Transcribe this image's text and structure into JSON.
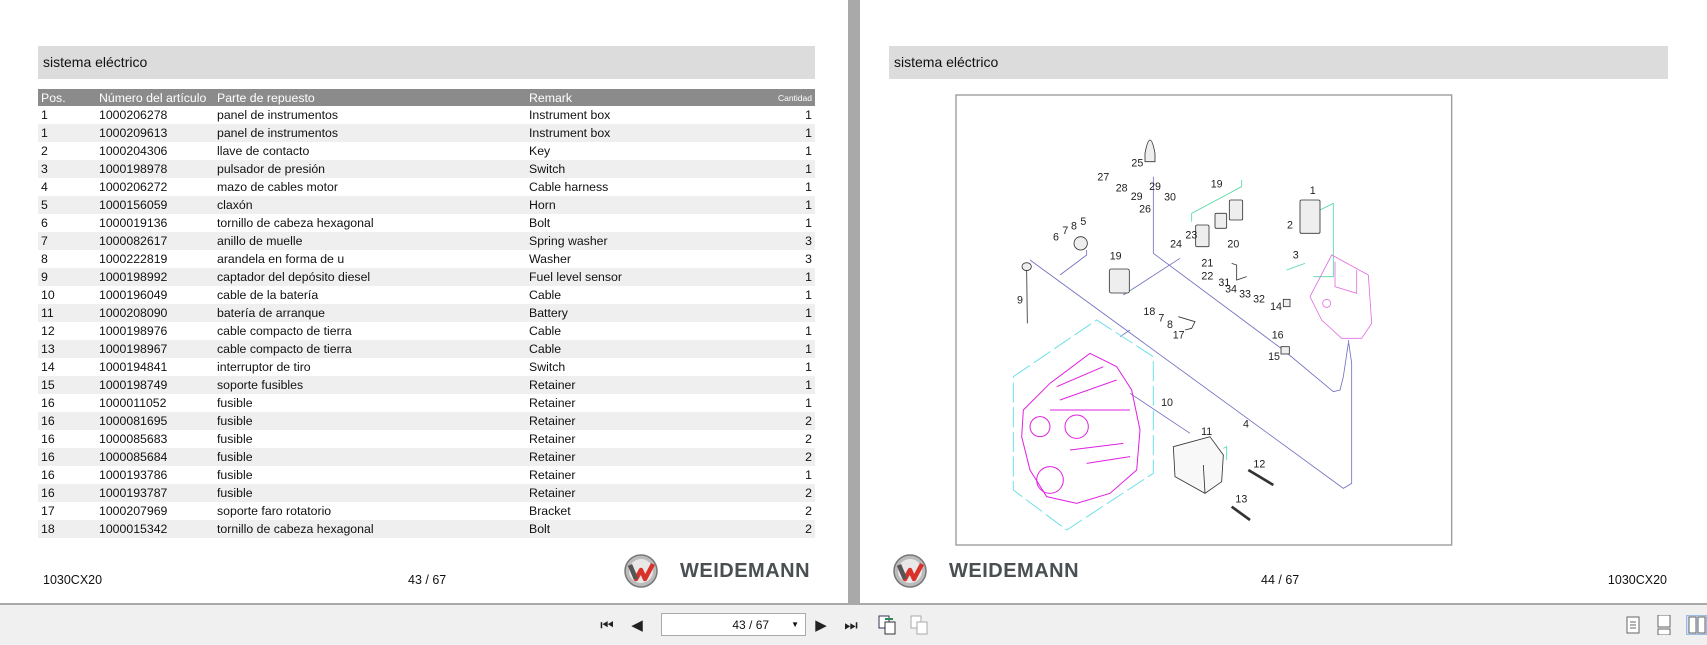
{
  "left_page": {
    "section_title": "sistema eléctrico",
    "columns": [
      "Pos.",
      "Número del artículo",
      "Parte de repuesto",
      "Remark",
      "Cantidad"
    ],
    "rows": [
      [
        "1",
        "1000206278",
        "panel de instrumentos",
        "Instrument box",
        "1"
      ],
      [
        "1",
        "1000209613",
        "panel de instrumentos",
        "Instrument box",
        "1"
      ],
      [
        "2",
        "1000204306",
        "llave de contacto",
        "Key",
        "1"
      ],
      [
        "3",
        "1000198978",
        "pulsador de presión",
        "Switch",
        "1"
      ],
      [
        "4",
        "1000206272",
        "mazo de cables motor",
        "Cable harness",
        "1"
      ],
      [
        "5",
        "1000156059",
        "claxón",
        "Horn",
        "1"
      ],
      [
        "6",
        "1000019136",
        "tornillo de cabeza hexagonal",
        "Bolt",
        "1"
      ],
      [
        "7",
        "1000082617",
        "anillo de muelle",
        "Spring washer",
        "3"
      ],
      [
        "8",
        "1000222819",
        "arandela en forma de u",
        "Washer",
        "3"
      ],
      [
        "9",
        "1000198992",
        "captador del depósito diesel",
        "Fuel level sensor",
        "1"
      ],
      [
        "10",
        "1000196049",
        "cable de la batería",
        "Cable",
        "1"
      ],
      [
        "11",
        "1000208090",
        "batería de arranque",
        "Battery",
        "1"
      ],
      [
        "12",
        "1000198976",
        "cable compacto de tierra",
        "Cable",
        "1"
      ],
      [
        "13",
        "1000198967",
        "cable compacto de tierra",
        "Cable",
        "1"
      ],
      [
        "14",
        "1000194841",
        "interruptor de tiro",
        "Switch",
        "1"
      ],
      [
        "15",
        "1000198749",
        "soporte fusibles",
        "Retainer",
        "1"
      ],
      [
        "16",
        "1000011052",
        "fusible",
        "Retainer",
        "1"
      ],
      [
        "16",
        "1000081695",
        "fusible",
        "Retainer",
        "2"
      ],
      [
        "16",
        "1000085683",
        "fusible",
        "Retainer",
        "2"
      ],
      [
        "16",
        "1000085684",
        "fusible",
        "Retainer",
        "2"
      ],
      [
        "16",
        "1000193786",
        "fusible",
        "Retainer",
        "1"
      ],
      [
        "16",
        "1000193787",
        "fusible",
        "Retainer",
        "2"
      ],
      [
        "17",
        "1000207969",
        "soporte faro rotatorio",
        "Bracket",
        "2"
      ],
      [
        "18",
        "1000015342",
        "tornillo de cabeza hexagonal",
        "Bolt",
        "2"
      ]
    ],
    "model": "1030CX20",
    "page_num": "43 / 67",
    "brand": "WEIDEMANN"
  },
  "right_page": {
    "section_title": "sistema eléctrico",
    "callouts": [
      "25",
      "27",
      "28",
      "29",
      "26",
      "29",
      "30",
      "19",
      "1",
      "2",
      "6",
      "7",
      "8",
      "5",
      "24",
      "23",
      "20",
      "21",
      "22",
      "19",
      "3",
      "31",
      "34",
      "33",
      "32",
      "14",
      "9",
      "18",
      "7",
      "8",
      "17",
      "16",
      "15",
      "10",
      "4",
      "11",
      "12",
      "13"
    ],
    "model": "1030CX20",
    "page_num": "44 / 67",
    "brand": "WEIDEMANN"
  },
  "toolbar": {
    "page_value": "43 / 67",
    "icons": [
      "first-page-icon",
      "previous-page-icon",
      "next-page-icon",
      "last-page-icon",
      "previous-view-icon",
      "next-view-icon",
      "single-page-icon",
      "continuous-icon",
      "two-page-icon"
    ]
  },
  "colors": {
    "header_row": "#8b8b8b",
    "section_bar": "#dcdcdc",
    "logo_red": "#d9322b",
    "harness": "#7070c0",
    "engine": "#e020e0"
  }
}
